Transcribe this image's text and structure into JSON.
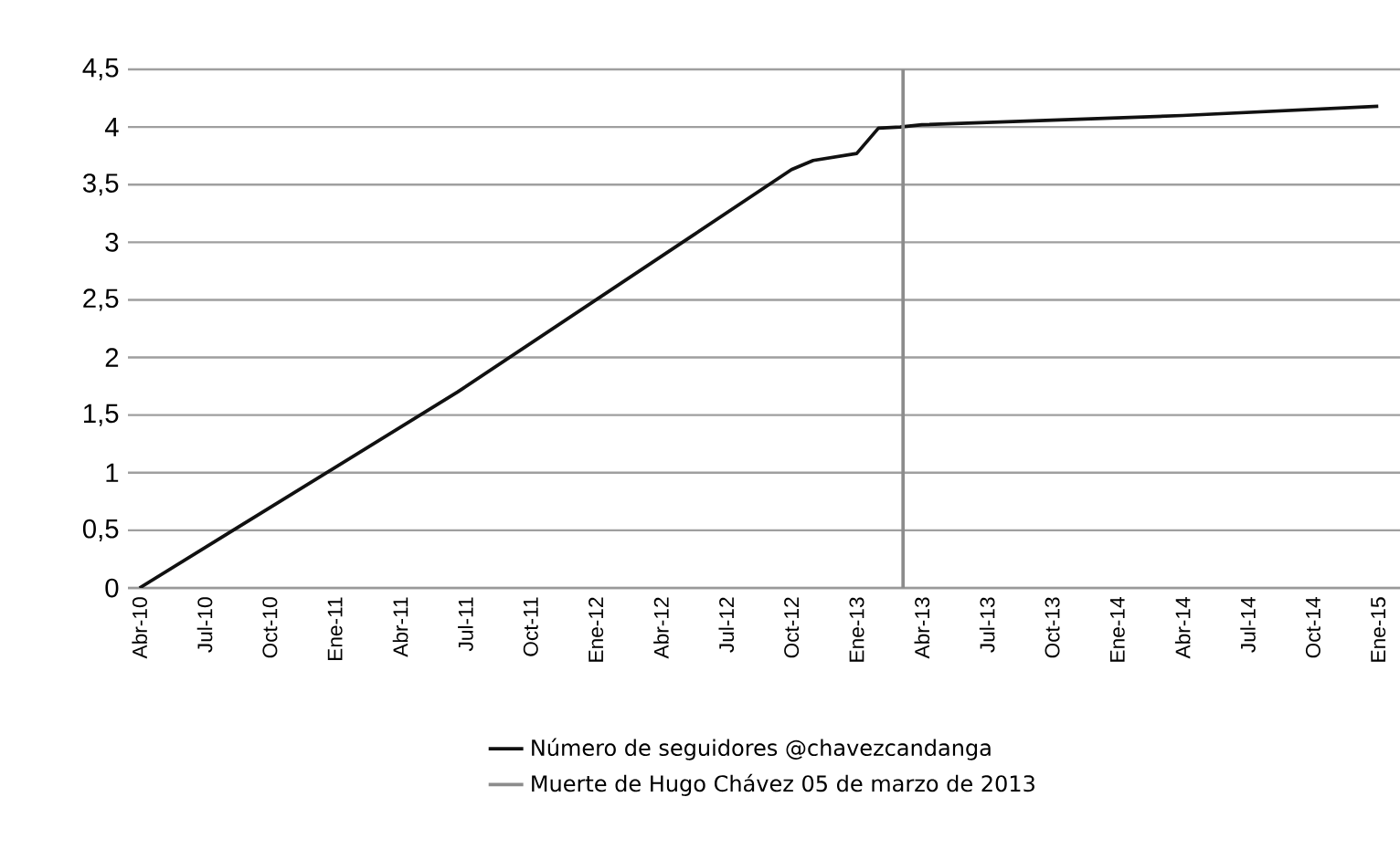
{
  "chart_data": {
    "type": "line",
    "x": [
      "2010-04",
      "2011-06-20",
      "2012-10",
      "2012-11",
      "2013-01",
      "2013-02",
      "2013-03",
      "2013-04",
      "2013-10",
      "2014-04",
      "2015-01"
    ],
    "series": [
      {
        "name": "Número de seguidores @chavezcandanga",
        "color": "#111111",
        "values": [
          0,
          1.7,
          3.63,
          3.71,
          3.77,
          3.99,
          4.0,
          4.02,
          4.06,
          4.1,
          4.18
        ]
      }
    ],
    "xlim": [
      "2010-03-15",
      "2015-02-01"
    ],
    "xticks": [
      {
        "value": "2010-04",
        "label": "Abr-10"
      },
      {
        "value": "2010-07",
        "label": "Jul-10"
      },
      {
        "value": "2010-10",
        "label": "Oct-10"
      },
      {
        "value": "2011-01",
        "label": "Ene-11"
      },
      {
        "value": "2011-04",
        "label": "Abr-11"
      },
      {
        "value": "2011-07",
        "label": "Jul-11"
      },
      {
        "value": "2011-10",
        "label": "Oct-11"
      },
      {
        "value": "2012-01",
        "label": "Ene-12"
      },
      {
        "value": "2012-04",
        "label": "Abr-12"
      },
      {
        "value": "2012-07",
        "label": "Jul-12"
      },
      {
        "value": "2012-10",
        "label": "Oct-12"
      },
      {
        "value": "2013-01",
        "label": "Ene-13"
      },
      {
        "value": "2013-04",
        "label": "Abr-13"
      },
      {
        "value": "2013-07",
        "label": "Jul-13"
      },
      {
        "value": "2013-10",
        "label": "Oct-13"
      },
      {
        "value": "2014-01",
        "label": "Ene-14"
      },
      {
        "value": "2014-04",
        "label": "Abr-14"
      },
      {
        "value": "2014-07",
        "label": "Jul-14"
      },
      {
        "value": "2014-10",
        "label": "Oct-14"
      },
      {
        "value": "2015-01",
        "label": "Ene-15"
      }
    ],
    "ylim": [
      0,
      4.5
    ],
    "yticks": [
      0,
      {
        "value": 0.5,
        "label": "0,5"
      },
      1,
      {
        "value": 1.5,
        "label": "1,5"
      },
      2,
      {
        "value": 2.5,
        "label": "2,5"
      },
      3,
      {
        "value": 3.5,
        "label": "3,5"
      },
      4,
      {
        "value": 4.5,
        "label": "4,5"
      }
    ],
    "ref_lines": [
      {
        "axis": "x",
        "value": "2013-03-05",
        "label": "Muerte de Hugo Chávez 05 de marzo de 2013",
        "color": "#8c8c8c"
      }
    ],
    "grid": "y",
    "legend": "bottom",
    "line_style": "solid"
  }
}
